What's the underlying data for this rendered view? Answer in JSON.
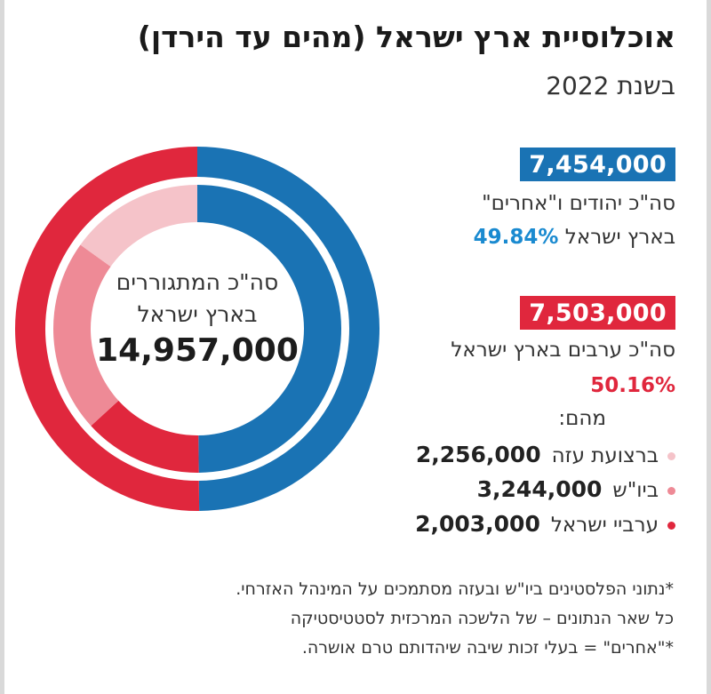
{
  "title": "אוכלוסיית ארץ ישראל (מהים עד הירדן)",
  "subtitle": "בשנת 2022",
  "colors": {
    "blue": "#1a73b4",
    "red": "#e0273d",
    "red_mid": "#ee8a96",
    "red_light": "#f5c3c9",
    "pct_blue": "#1a8ad0",
    "pct_red": "#e0273d"
  },
  "center": {
    "line1": "סה\"כ המתגוררים",
    "line2": "בארץ ישראל",
    "total": "14,957,000"
  },
  "jews": {
    "value": "7,454,000",
    "label": "סה\"כ יהודים ו\"אחרים\"",
    "label2": "בארץ ישראל",
    "pct": "49.84%"
  },
  "arabs": {
    "value": "7,503,000",
    "label": "סה\"כ ערבים בארץ ישראל",
    "pct": "50.16%",
    "of_which": "מהם:"
  },
  "breakdown": [
    {
      "label": "ברצועת עזה",
      "value": "2,256,000",
      "color": "#f5c3c9"
    },
    {
      "label": "ביו\"ש",
      "value": "3,244,000",
      "color": "#ee8a96"
    },
    {
      "label": "ערביי ישראל",
      "value": "2,003,000",
      "color": "#e0273d"
    }
  ],
  "notes": [
    "*נתוני הפלסטינים ביו\"ש ובעזה מסתמכים על המינהל האזרחי.",
    "כל שאר הנתונים – של הלשכה המרכזית לסטטיסטיקה",
    "*\"אחרים\" = בעלי זכות שיבה שיהדותם טרם אושרה."
  ],
  "chart_data": {
    "type": "pie",
    "title": "אוכלוסיית ארץ ישראל (מהים עד הירדן)",
    "outer_ring": {
      "categories": [
        "סה\"כ יהודים ו\"אחרים\"",
        "סה\"כ ערבים בארץ ישראל"
      ],
      "values": [
        7454000,
        7503000
      ],
      "colors": [
        "#1a73b4",
        "#e0273d"
      ]
    },
    "inner_ring": {
      "categories": [
        "סה\"כ יהודים ו\"אחרים\"",
        "ערביי ישראל",
        "ביו\"ש",
        "ברצועת עזה"
      ],
      "values": [
        7454000,
        2003000,
        3244000,
        2256000
      ],
      "colors": [
        "#1a73b4",
        "#e0273d",
        "#ee8a96",
        "#f5c3c9"
      ]
    },
    "total": 14957000
  }
}
